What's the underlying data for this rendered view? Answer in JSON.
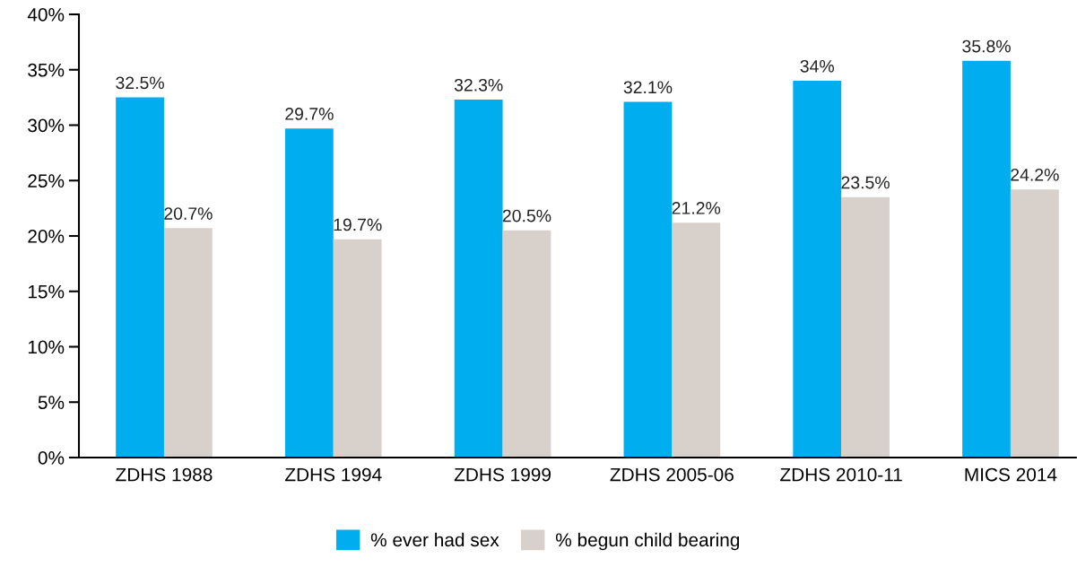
{
  "chart_data": {
    "type": "bar",
    "categories": [
      "ZDHS 1988",
      "ZDHS 1994",
      "ZDHS 1999",
      "ZDHS 2005-06",
      "ZDHS 2010-11",
      "MICS 2014"
    ],
    "series": [
      {
        "name": "% ever had sex",
        "color": "#00aeef",
        "values": [
          32.5,
          29.7,
          32.3,
          32.1,
          34,
          35.8
        ],
        "value_labels": [
          "32.5%",
          "29.7%",
          "32.3%",
          "32.1%",
          "34%",
          "35.8%"
        ]
      },
      {
        "name": "% begun child bearing",
        "color": "#d7d0cb",
        "values": [
          20.7,
          19.7,
          20.5,
          21.2,
          23.5,
          24.2
        ],
        "value_labels": [
          "20.7%",
          "19.7%",
          "20.5%",
          "21.2%",
          "23.5%",
          "24.2%"
        ]
      }
    ],
    "ylim": [
      0,
      40
    ],
    "yticks": [
      {
        "value": 0,
        "label": "0%"
      },
      {
        "value": 5,
        "label": "5%"
      },
      {
        "value": 10,
        "label": "10%"
      },
      {
        "value": 15,
        "label": "15%"
      },
      {
        "value": 20,
        "label": "20%"
      },
      {
        "value": 25,
        "label": "25%"
      },
      {
        "value": 30,
        "label": "30%"
      },
      {
        "value": 35,
        "label": "35%"
      },
      {
        "value": 40,
        "label": "40%"
      }
    ],
    "grid": false,
    "legend": "bottom"
  }
}
